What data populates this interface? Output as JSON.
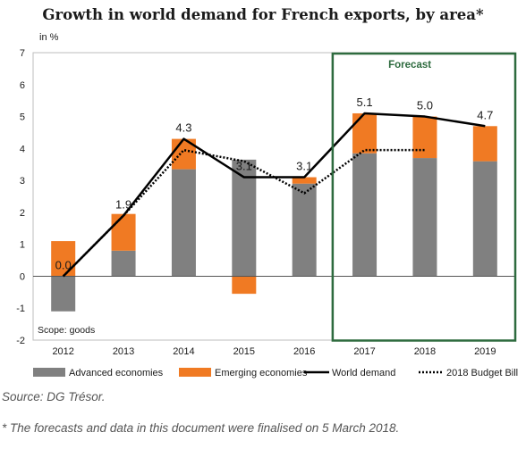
{
  "chart_data": {
    "type": "bar",
    "title": "Growth in world demand for French exports, by area*",
    "unit_label": "in %",
    "categories": [
      "2012",
      "2013",
      "2014",
      "2015",
      "2016",
      "2017",
      "2018",
      "2019"
    ],
    "ylim": [
      -2,
      7
    ],
    "yticks": [
      -2,
      -1,
      0,
      1,
      2,
      3,
      4,
      5,
      6,
      7
    ],
    "stacked": true,
    "series": [
      {
        "name": "Advanced economies",
        "kind": "bar",
        "color": "#808080",
        "values": [
          -1.1,
          0.8,
          3.35,
          3.65,
          2.9,
          3.85,
          3.7,
          3.6
        ]
      },
      {
        "name": "Emerging economies",
        "kind": "bar",
        "color": "#f07a23",
        "values": [
          1.1,
          1.15,
          0.95,
          -0.55,
          0.2,
          1.25,
          1.3,
          1.1
        ]
      },
      {
        "name": "World demand",
        "kind": "line",
        "style": "solid",
        "color": "#000000",
        "values": [
          0.0,
          1.9,
          4.3,
          3.1,
          3.1,
          5.1,
          5.0,
          4.7
        ]
      },
      {
        "name": "2018 Budget Bill",
        "kind": "line",
        "style": "dotted",
        "color": "#000000",
        "values": [
          0.0,
          1.9,
          3.95,
          3.6,
          2.6,
          3.95,
          3.95,
          null
        ]
      }
    ],
    "data_labels": [
      "0.0",
      "1.9",
      "4.3",
      "3.1",
      "3.1",
      "5.1",
      "5.0",
      "4.7"
    ],
    "forecast_label": "Forecast",
    "forecast_categories": [
      "2017",
      "2018",
      "2019"
    ],
    "scope_note": "Scope: goods",
    "grid": false,
    "legend_position": "bottom"
  },
  "source": "Source: DG Trésor.",
  "footnote": "* The forecasts and data in this document were finalised on 5 March 2018."
}
